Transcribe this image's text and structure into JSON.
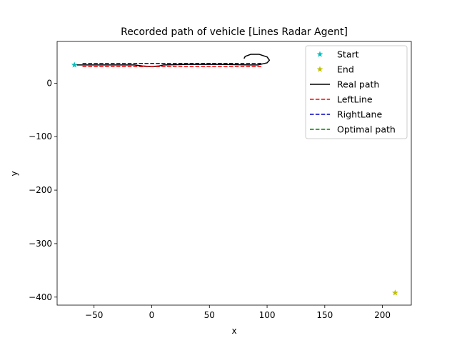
{
  "chart_data": {
    "type": "line",
    "title": "Recorded path of vehicle [Lines Radar Agent]",
    "xlabel": "x",
    "ylabel": "y",
    "xlim": [
      -82,
      225
    ],
    "ylim": [
      -415,
      78
    ],
    "xticks": [
      -50,
      0,
      50,
      100,
      150,
      200
    ],
    "xtick_labels": [
      "−50",
      "0",
      "50",
      "100",
      "150",
      "200"
    ],
    "yticks": [
      0,
      -100,
      -200,
      -300,
      -400
    ],
    "ytick_labels": [
      "0",
      "−100",
      "−200",
      "−300",
      "−400"
    ],
    "grid": false,
    "legend_position": "top-right",
    "series": [
      {
        "name": "Start",
        "kind": "marker",
        "marker": "star",
        "color": "#00bfbf",
        "points": [
          [
            -67,
            34
          ]
        ]
      },
      {
        "name": "End",
        "kind": "marker",
        "marker": "star",
        "color": "#bfbf00",
        "points": [
          [
            211,
            -392
          ]
        ]
      },
      {
        "name": "Real path",
        "kind": "line",
        "style": "solid",
        "color": "#000000",
        "points": [
          [
            -65,
            34
          ],
          [
            -30,
            34
          ],
          [
            -15,
            34
          ],
          [
            -8,
            32
          ],
          [
            0,
            31
          ],
          [
            6,
            32
          ],
          [
            10,
            34
          ],
          [
            30,
            35
          ],
          [
            60,
            35
          ],
          [
            85,
            34
          ],
          [
            92,
            34
          ],
          [
            100,
            38
          ],
          [
            102,
            43
          ],
          [
            100,
            49
          ],
          [
            93,
            54
          ],
          [
            86,
            54
          ],
          [
            81,
            50
          ],
          [
            80,
            46
          ]
        ]
      },
      {
        "name": "LeftLine",
        "kind": "line",
        "style": "dashed",
        "color": "#ff0000",
        "points": [
          [
            -60,
            31
          ],
          [
            95,
            31
          ]
        ]
      },
      {
        "name": "RightLane",
        "kind": "line",
        "style": "dashed",
        "color": "#0000bf",
        "points": [
          [
            -60,
            37
          ],
          [
            95,
            37
          ]
        ]
      },
      {
        "name": "Optimal path",
        "kind": "line",
        "style": "dashed",
        "color": "#008000",
        "points": []
      }
    ]
  }
}
